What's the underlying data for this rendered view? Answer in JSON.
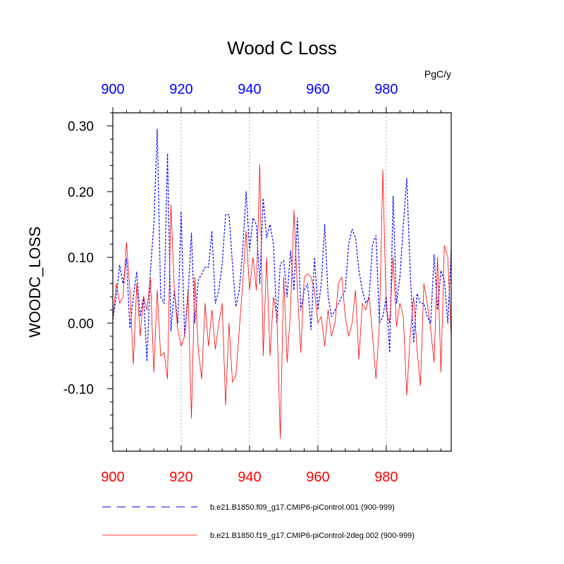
{
  "chart_data": {
    "type": "line",
    "title": "Wood C Loss",
    "units": "PgC/y",
    "ylabel": "WOODC_LOSS",
    "xlim": [
      900,
      999
    ],
    "ylim": [
      -0.195,
      0.32
    ],
    "x_start": 900,
    "x_step": 1,
    "x_ticks": [
      900,
      920,
      940,
      960,
      980
    ],
    "x_tick_labels": [
      "900",
      "920",
      "940",
      "960",
      "980"
    ],
    "y_ticks": [
      -0.1,
      0.0,
      0.1,
      0.2,
      0.3
    ],
    "y_tick_labels": [
      "-0.10",
      "0.00",
      "0.10",
      "0.20",
      "0.30"
    ],
    "grid": "vertical-dotted",
    "legend": "bottom",
    "colors": {
      "series1": "#0000ff",
      "series2": "#ff0000",
      "axis": "#000000",
      "grid": "#aaaaaa"
    },
    "series": [
      {
        "name": "b.e21.B1850.f09_g17.CMIP6-piControl.001 (900-999)",
        "style": "dashed",
        "color": "#0000ff",
        "values": [
          0.005,
          0.04,
          0.088,
          0.06,
          0.098,
          -0.008,
          0.04,
          0.078,
          0.01,
          0.04,
          -0.058,
          0.08,
          0.15,
          0.295,
          0.04,
          0.03,
          0.258,
          -0.012,
          0.05,
          0.0,
          0.17,
          -0.02,
          0.04,
          0.137,
          0.0,
          0.065,
          0.075,
          0.085,
          0.085,
          0.14,
          0.03,
          0.05,
          0.09,
          0.165,
          0.165,
          0.09,
          0.025,
          0.05,
          0.11,
          0.2,
          0.11,
          0.16,
          0.15,
          0.06,
          0.19,
          0.13,
          0.15,
          0.12,
          0.0,
          0.09,
          0.095,
          0.04,
          0.11,
          0.05,
          0.16,
          0.02,
          0.05,
          0.06,
          -0.01,
          0.1,
          0.02,
          0.06,
          0.15,
          0.04,
          0.01,
          0.02,
          0.03,
          0.04,
          0.05,
          0.12,
          0.143,
          0.13,
          0.08,
          0.05,
          0.03,
          0.04,
          0.12,
          0.133,
          0.0,
          0.01,
          0.04,
          -0.045,
          0.193,
          0.03,
          0.07,
          0.15,
          0.22,
          0.08,
          -0.03,
          0.045,
          0.03,
          0.03,
          0.01,
          0.0,
          0.104,
          0.02,
          0.08,
          0.065,
          0.0,
          0.11
        ]
      },
      {
        "name": "b.e21.B1850.f19_g17.CMIP6-piControl-2deg.002 (900-999)",
        "style": "solid",
        "color": "#ff0000",
        "values": [
          0.005,
          0.06,
          0.03,
          0.04,
          0.123,
          0.05,
          -0.063,
          0.06,
          -0.02,
          0.04,
          0.02,
          0.07,
          -0.075,
          0.05,
          -0.05,
          -0.045,
          -0.085,
          0.18,
          0.05,
          -0.01,
          -0.035,
          -0.02,
          0.05,
          -0.145,
          0.07,
          -0.04,
          -0.085,
          0.03,
          -0.035,
          0.02,
          -0.04,
          0.0,
          0.03,
          -0.125,
          0.0,
          -0.09,
          -0.08,
          -0.01,
          0.06,
          0.14,
          0.05,
          0.1,
          0.05,
          0.241,
          -0.05,
          0.1,
          -0.05,
          0.04,
          0.01,
          -0.175,
          0.07,
          -0.06,
          0.02,
          0.172,
          0.05,
          -0.045,
          0.07,
          0.075,
          0.07,
          0.05,
          0.0,
          0.01,
          -0.035,
          0.02,
          -0.02,
          0.0,
          0.06,
          0.07,
          0.01,
          -0.02,
          0.0,
          0.05,
          -0.055,
          0.03,
          0.02,
          0.04,
          -0.02,
          -0.085,
          0.0,
          0.233,
          0.02,
          0.0,
          0.1,
          -0.005,
          0.03,
          0.01,
          -0.11,
          -0.02,
          0.04,
          -0.04,
          -0.095,
          0.06,
          0.03,
          -0.01,
          -0.06,
          0.1,
          -0.075,
          0.118,
          0.1,
          -0.02
        ]
      }
    ]
  }
}
